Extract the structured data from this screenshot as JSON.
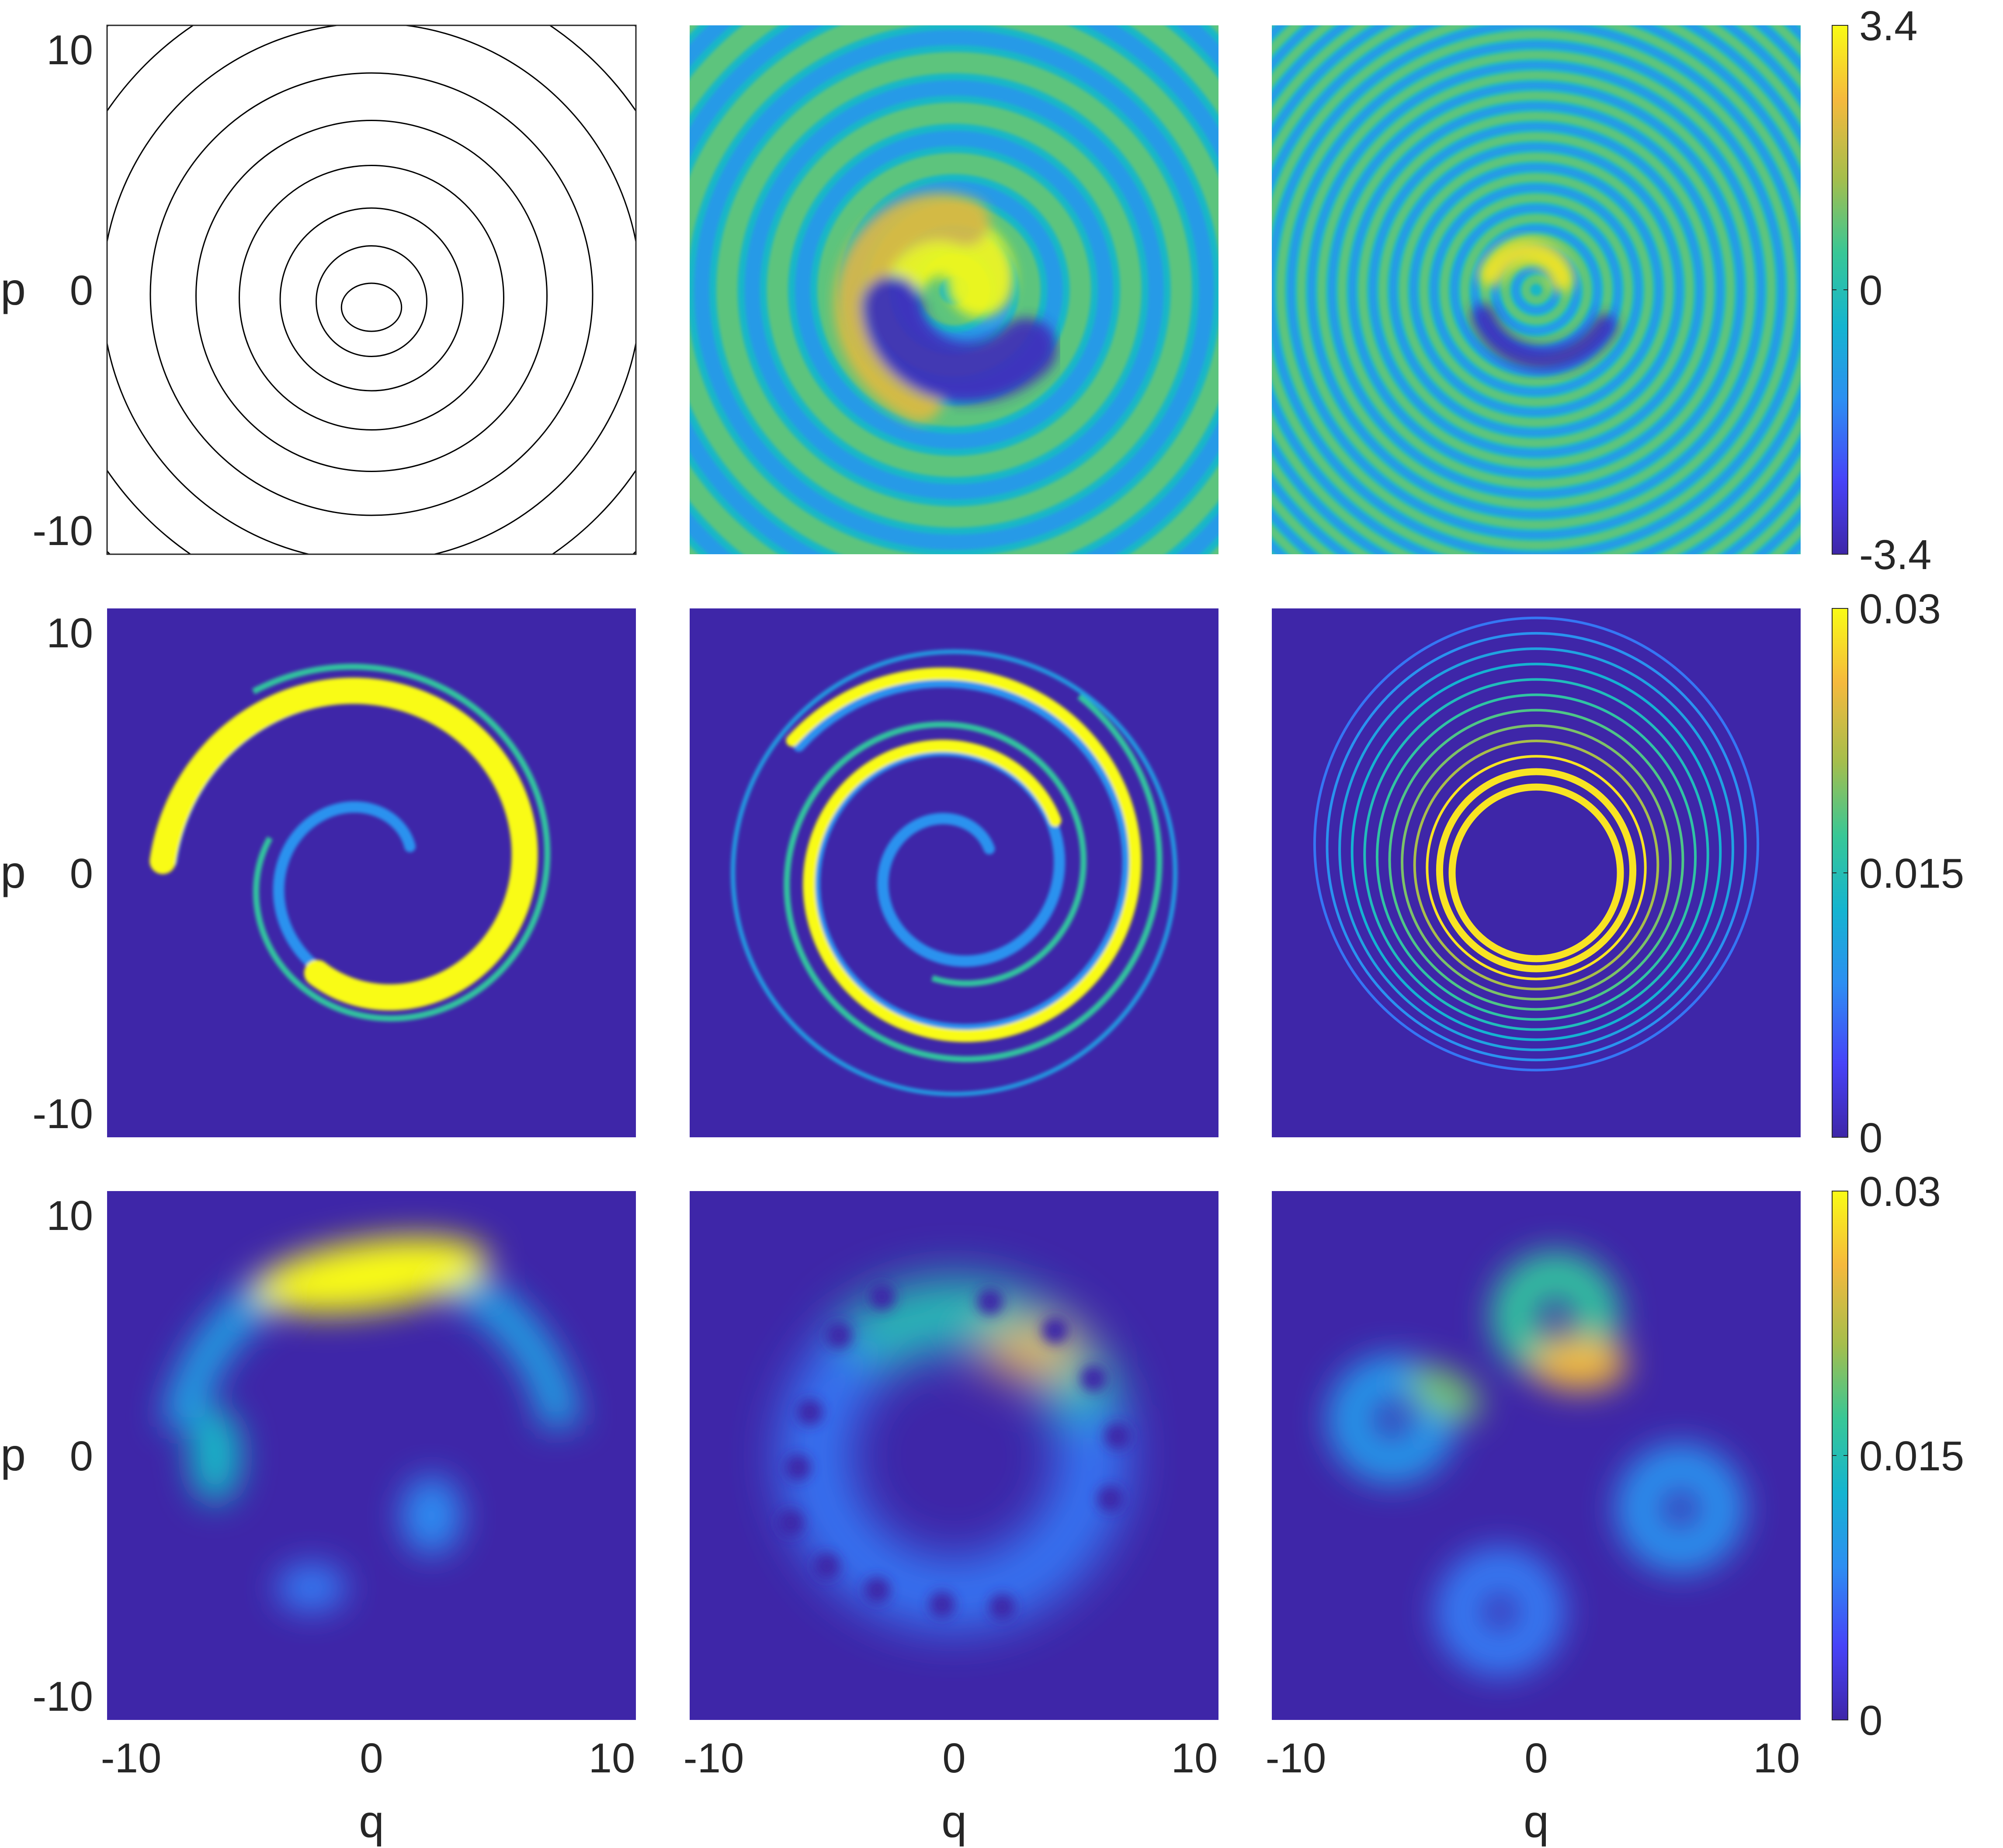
{
  "chart_data": {
    "type": "heatmap",
    "layout": "3x3 grid of phase-space panels",
    "x": {
      "label": "q",
      "range": [
        -11,
        11
      ],
      "ticks": [
        -10,
        0,
        10
      ]
    },
    "y": {
      "label": "p",
      "range": [
        -11,
        11
      ],
      "ticks": [
        -10,
        0,
        10
      ]
    },
    "colormap": [
      "#3e26a8",
      "#4743f8",
      "#2d8ef2",
      "#14b4d0",
      "#38c796",
      "#a5be4c",
      "#f5b93d",
      "#f9fb15"
    ],
    "rows": [
      {
        "colorbar": {
          "range": [
            -3.4,
            3.4
          ],
          "ticks": [
            "3.4",
            "0",
            "-3.4"
          ]
        },
        "panels": [
          {
            "kind": "contour",
            "description_free": true,
            "contour_radii": [
              1,
              2.3,
              3.8,
              5.5,
              7.3,
              9.2,
              11.2,
              13.3,
              15.5
            ]
          },
          {
            "kind": "spiral-wave",
            "ring_period": 2.1,
            "amplitude_max": 3.4
          },
          {
            "kind": "spiral-wave",
            "ring_period": 0.85,
            "amplitude_max": 3.4
          }
        ]
      },
      {
        "colorbar": {
          "range": [
            0,
            0.03
          ],
          "ticks": [
            "0.03",
            "0.015",
            "0"
          ]
        },
        "panels": [
          {
            "kind": "spiral-density",
            "turns": 1.3
          },
          {
            "kind": "spiral-density",
            "turns": 2.2
          },
          {
            "kind": "concentric-rings",
            "ring_count": 12
          }
        ]
      },
      {
        "colorbar": {
          "range": [
            0,
            0.03
          ],
          "ticks": [
            "0.03",
            "0.015",
            "0"
          ]
        },
        "panels": [
          {
            "kind": "husimi-arc"
          },
          {
            "kind": "husimi-arc-holes"
          },
          {
            "kind": "husimi-rings"
          }
        ]
      }
    ]
  }
}
